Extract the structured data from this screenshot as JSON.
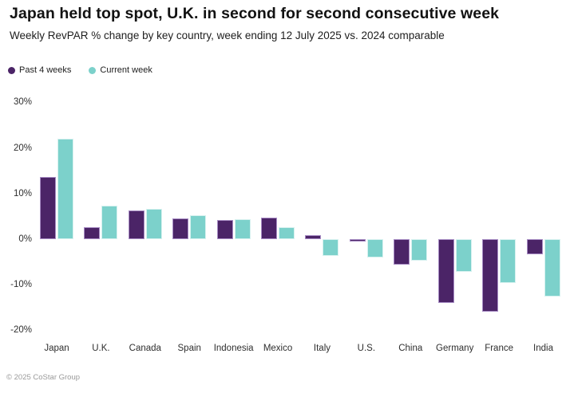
{
  "header": {
    "title": "Japan held top spot, U.K. in second for second consecutive week",
    "subtitle": "Weekly RevPAR % change by key country, week ending 12 July 2025 vs. 2024 comparable"
  },
  "legend": {
    "items": [
      {
        "label": "Past 4 weeks",
        "color": "#4B2467"
      },
      {
        "label": "Current week",
        "color": "#7CD1CB"
      }
    ]
  },
  "footer": {
    "copyright": "© 2025 CoStar Group"
  },
  "colors": {
    "past_4_weeks": "#4B2467",
    "current_week": "#7CD1CB",
    "text_primary": "#121212",
    "axis_text": "#2e2e2e",
    "footer_text": "#9a9a9a",
    "background": "#ffffff"
  },
  "chart_data": {
    "type": "bar",
    "title": "Japan held top spot, U.K. in second for second consecutive week",
    "subtitle": "Weekly RevPAR % change by key country, week ending 12 July 2025 vs. 2024 comparable",
    "xlabel": "",
    "ylabel": "Weekly RevPAR % change",
    "categories": [
      "Japan",
      "U.K.",
      "Canada",
      "Spain",
      "Indonesia",
      "Mexico",
      "Italy",
      "U.S.",
      "China",
      "Germany",
      "France",
      "India"
    ],
    "series": [
      {
        "name": "Past 4 weeks",
        "color": "#4B2467",
        "values": [
          13.6,
          2.6,
          6.3,
          4.5,
          4.2,
          4.7,
          0.9,
          -0.5,
          -5.6,
          -13.9,
          -15.9,
          -3.4
        ]
      },
      {
        "name": "Current week",
        "color": "#7CD1CB",
        "values": [
          22.1,
          7.4,
          6.6,
          5.2,
          4.4,
          2.7,
          -3.7,
          -4.0,
          -4.8,
          -7.1,
          -9.6,
          -12.5
        ]
      }
    ],
    "y_ticks": [
      30,
      20,
      10,
      0,
      -10,
      -20
    ],
    "y_tick_suffix": "%",
    "ylim": [
      -22,
      32
    ],
    "grid": false,
    "legend_position": "top-left"
  }
}
